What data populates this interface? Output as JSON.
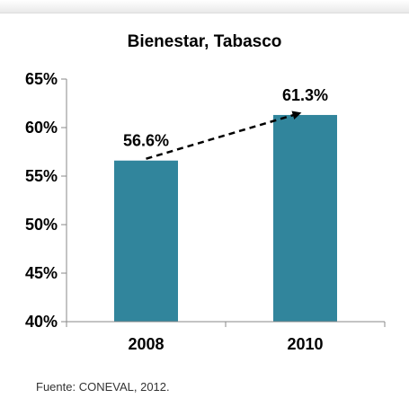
{
  "chart_data": {
    "type": "bar",
    "title": "Bienestar, Tabasco",
    "categories": [
      "2008",
      "2010"
    ],
    "values": [
      56.6,
      61.3
    ],
    "data_labels": [
      "56.6%",
      "61.3%"
    ],
    "ylim": [
      40,
      65
    ],
    "yticks": [
      40,
      45,
      50,
      55,
      60,
      65
    ],
    "ytick_labels": [
      "40%",
      "45%",
      "50%",
      "55%",
      "60%",
      "65%"
    ],
    "bar_color": "#31859c",
    "annotation": "dashed arrow from 2008 to 2010",
    "grid": false,
    "legend": "none"
  },
  "source": "Fuente: CONEVAL, 2012."
}
